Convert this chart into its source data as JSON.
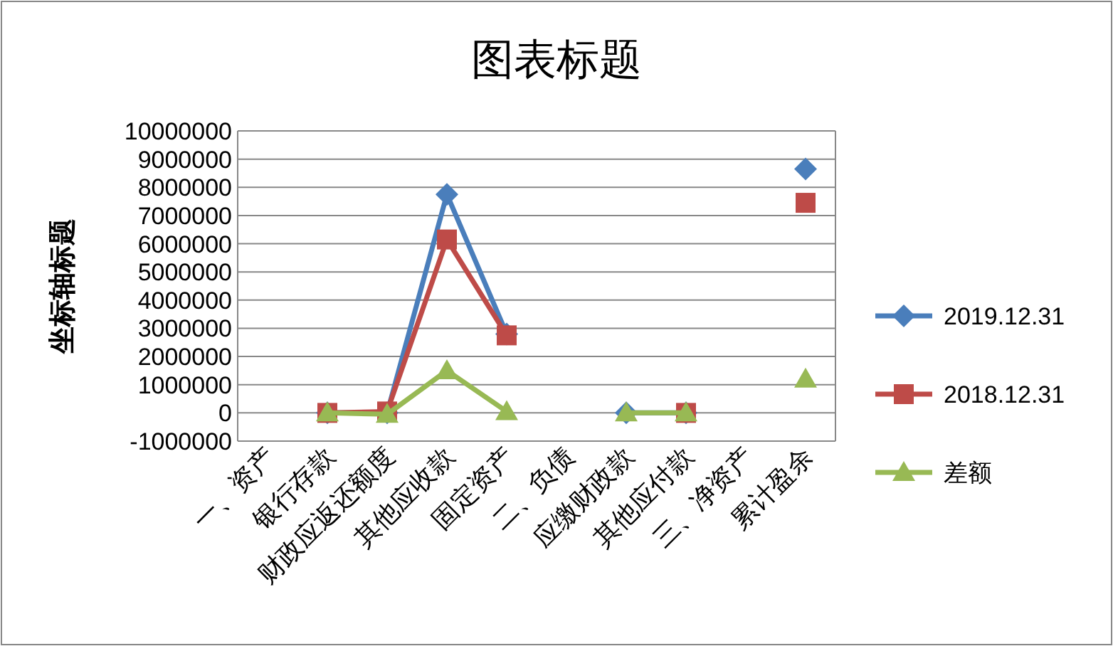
{
  "chart_data": {
    "type": "line",
    "title": "图表标题",
    "ylabel": "坐标轴标题",
    "categories": [
      "一、资产",
      "银行存款",
      "财政应返还额度",
      "其他应收款",
      "固定资产",
      "二、负债",
      "应缴财政款",
      "其他应付款",
      "三、净资产",
      "累计盈余"
    ],
    "series": [
      {
        "name": "2019.12.31",
        "color": "#4a7ebb",
        "marker": "diamond",
        "values": [
          null,
          0,
          0,
          7750000,
          2800000,
          null,
          0,
          0,
          null,
          8650000
        ]
      },
      {
        "name": "2018.12.31",
        "color": "#be4b48",
        "marker": "square",
        "values": [
          null,
          0,
          50000,
          6150000,
          2750000,
          null,
          null,
          0,
          null,
          7450000
        ]
      },
      {
        "name": "差额",
        "color": "#98b954",
        "marker": "triangle",
        "values": [
          null,
          0,
          -50000,
          1500000,
          50000,
          null,
          0,
          0,
          null,
          1200000
        ]
      }
    ],
    "ylim": [
      -1000000,
      10000000
    ],
    "yticks": [
      -1000000,
      0,
      1000000,
      2000000,
      3000000,
      4000000,
      5000000,
      6000000,
      7000000,
      8000000,
      9000000,
      10000000
    ],
    "grid": "y",
    "legend": "right",
    "line_style": "solid"
  }
}
